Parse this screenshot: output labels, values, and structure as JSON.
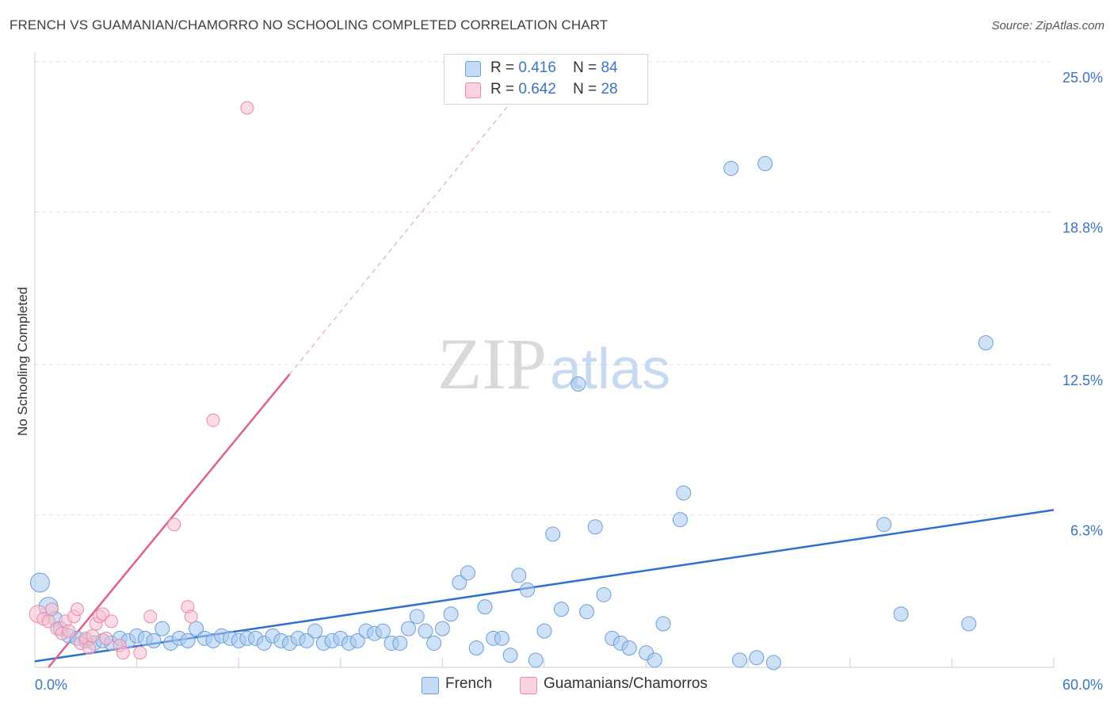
{
  "chart_data": {
    "type": "scatter",
    "title": "FRENCH VS GUAMANIAN/CHAMORRO NO SCHOOLING COMPLETED CORRELATION CHART",
    "source": "Source: ZipAtlas.com",
    "xlabel": "",
    "ylabel": "No Schooling Completed",
    "xlim": [
      0,
      60
    ],
    "ylim": [
      0,
      25
    ],
    "x_tick_labels": [
      "0.0%",
      "60.0%"
    ],
    "y_ticks": [
      6.3,
      12.5,
      18.8,
      25.0
    ],
    "y_tick_labels": [
      "6.3%",
      "12.5%",
      "18.8%",
      "25.0%"
    ],
    "watermark": "ZIPatlas",
    "legend": {
      "r_label": "R =",
      "n_label": "N =",
      "rows": [
        {
          "r": "0.416",
          "n": "84"
        },
        {
          "r": "0.642",
          "n": "28"
        }
      ]
    },
    "series": [
      {
        "name": "French",
        "color": "#a8c8f0",
        "stroke": "#6b9fd8",
        "line_color": "#2f6fd0",
        "trend": {
          "x0": 0,
          "y0": 0.25,
          "x1": 60,
          "y1": 6.5
        },
        "points": [
          [
            0.3,
            3.5
          ],
          [
            0.8,
            2.5
          ],
          [
            1.2,
            2.0
          ],
          [
            1.5,
            1.6
          ],
          [
            2.0,
            1.3
          ],
          [
            2.5,
            1.2
          ],
          [
            3.0,
            1.1
          ],
          [
            3.5,
            1.0
          ],
          [
            4.0,
            1.1
          ],
          [
            4.5,
            1.0
          ],
          [
            5.0,
            1.2
          ],
          [
            5.5,
            1.1
          ],
          [
            6.0,
            1.3
          ],
          [
            6.5,
            1.2
          ],
          [
            7.0,
            1.1
          ],
          [
            7.5,
            1.6
          ],
          [
            8.0,
            1.0
          ],
          [
            8.5,
            1.2
          ],
          [
            9.0,
            1.1
          ],
          [
            9.5,
            1.6
          ],
          [
            10.0,
            1.2
          ],
          [
            10.5,
            1.1
          ],
          [
            11.0,
            1.3
          ],
          [
            11.5,
            1.2
          ],
          [
            12.0,
            1.1
          ],
          [
            12.5,
            1.2
          ],
          [
            13.0,
            1.2
          ],
          [
            13.5,
            1.0
          ],
          [
            14.0,
            1.3
          ],
          [
            14.5,
            1.1
          ],
          [
            15.0,
            1.0
          ],
          [
            15.5,
            1.2
          ],
          [
            16.0,
            1.1
          ],
          [
            16.5,
            1.5
          ],
          [
            17.0,
            1.0
          ],
          [
            17.5,
            1.1
          ],
          [
            18.0,
            1.2
          ],
          [
            18.5,
            1.0
          ],
          [
            19.0,
            1.1
          ],
          [
            19.5,
            1.5
          ],
          [
            20.0,
            1.4
          ],
          [
            20.5,
            1.5
          ],
          [
            21.0,
            1.0
          ],
          [
            21.5,
            1.0
          ],
          [
            22.0,
            1.6
          ],
          [
            22.5,
            2.1
          ],
          [
            23.0,
            1.5
          ],
          [
            23.5,
            1.0
          ],
          [
            24.0,
            1.6
          ],
          [
            24.5,
            2.2
          ],
          [
            25.0,
            3.5
          ],
          [
            25.5,
            3.9
          ],
          [
            26.0,
            0.8
          ],
          [
            26.5,
            2.5
          ],
          [
            27.0,
            1.2
          ],
          [
            27.5,
            1.2
          ],
          [
            28.0,
            0.5
          ],
          [
            28.5,
            3.8
          ],
          [
            29.0,
            3.2
          ],
          [
            29.5,
            0.3
          ],
          [
            30.0,
            1.5
          ],
          [
            30.5,
            5.5
          ],
          [
            31.0,
            2.4
          ],
          [
            32.0,
            11.7
          ],
          [
            32.5,
            2.3
          ],
          [
            33.0,
            5.8
          ],
          [
            33.5,
            3.0
          ],
          [
            34.0,
            1.2
          ],
          [
            34.5,
            1.0
          ],
          [
            35.0,
            0.8
          ],
          [
            36.0,
            0.6
          ],
          [
            36.5,
            0.3
          ],
          [
            37.0,
            1.8
          ],
          [
            38.0,
            6.1
          ],
          [
            38.2,
            7.2
          ],
          [
            41.0,
            20.6
          ],
          [
            41.5,
            0.3
          ],
          [
            42.5,
            0.4
          ],
          [
            43.0,
            20.8
          ],
          [
            43.5,
            0.2
          ],
          [
            50.0,
            5.9
          ],
          [
            51.0,
            2.2
          ],
          [
            55.0,
            1.8
          ],
          [
            56.0,
            13.4
          ]
        ]
      },
      {
        "name": "Guamanians/Chamorros",
        "color": "#f8bfd0",
        "stroke": "#e88aa8",
        "line_color": "#e0608a",
        "trend": {
          "x0": 0.8,
          "y0": 0.0,
          "x1": 15.0,
          "y1": 12.1
        },
        "trend_dashed_to": {
          "x": 28.0,
          "y": 23.3
        },
        "points": [
          [
            0.2,
            2.2
          ],
          [
            0.5,
            2.0
          ],
          [
            0.8,
            1.9
          ],
          [
            1.0,
            2.4
          ],
          [
            1.3,
            1.6
          ],
          [
            1.6,
            1.4
          ],
          [
            1.8,
            1.9
          ],
          [
            2.0,
            1.5
          ],
          [
            2.3,
            2.1
          ],
          [
            2.5,
            2.4
          ],
          [
            2.7,
            1.0
          ],
          [
            3.0,
            1.2
          ],
          [
            3.2,
            0.8
          ],
          [
            3.4,
            1.3
          ],
          [
            3.6,
            1.8
          ],
          [
            3.8,
            2.1
          ],
          [
            4.0,
            2.2
          ],
          [
            4.2,
            1.2
          ],
          [
            4.5,
            1.9
          ],
          [
            5.0,
            0.9
          ],
          [
            5.2,
            0.6
          ],
          [
            6.2,
            0.6
          ],
          [
            6.8,
            2.1
          ],
          [
            8.2,
            5.9
          ],
          [
            9.0,
            2.5
          ],
          [
            9.2,
            2.1
          ],
          [
            10.5,
            10.2
          ],
          [
            12.5,
            23.1
          ]
        ]
      }
    ]
  }
}
